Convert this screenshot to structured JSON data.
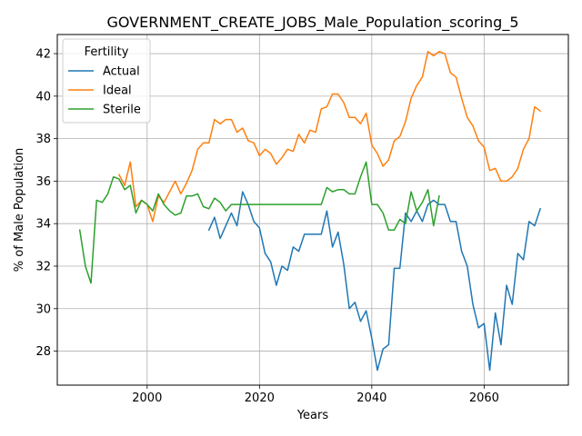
{
  "chart_data": {
    "type": "line",
    "title": "GOVERNMENT_CREATE_JOBS_Male_Population_scoring_5",
    "xlabel": "Years",
    "ylabel": "% of Male Population",
    "xlim": [
      1984,
      2075
    ],
    "ylim": [
      26.4,
      42.9
    ],
    "xticks": [
      2000,
      2020,
      2040,
      2060
    ],
    "yticks": [
      28,
      30,
      32,
      34,
      36,
      38,
      40,
      42
    ],
    "grid": true,
    "legend": {
      "title": "Fertility",
      "position": "top-left"
    },
    "series": [
      {
        "name": "Actual",
        "color": "#1f77b4",
        "x": [
          2011,
          2012,
          2013,
          2014,
          2015,
          2016,
          2017,
          2018,
          2019,
          2020,
          2021,
          2022,
          2023,
          2024,
          2025,
          2026,
          2027,
          2028,
          2029,
          2030,
          2031,
          2032,
          2033,
          2034,
          2035,
          2036,
          2037,
          2038,
          2039,
          2040,
          2041,
          2042,
          2043,
          2044,
          2045,
          2046,
          2047,
          2048,
          2049,
          2050,
          2051,
          2052,
          2053,
          2054,
          2055,
          2056,
          2057,
          2058,
          2059,
          2060,
          2061,
          2062,
          2063,
          2064,
          2065,
          2066,
          2067,
          2068,
          2069,
          2070
        ],
        "y": [
          33.7,
          34.3,
          33.3,
          33.9,
          34.5,
          33.9,
          35.5,
          34.9,
          34.1,
          33.8,
          32.6,
          32.2,
          31.1,
          32.0,
          31.8,
          32.9,
          32.7,
          33.5,
          33.5,
          33.5,
          33.5,
          34.6,
          32.9,
          33.6,
          32.1,
          30.0,
          30.3,
          29.4,
          29.9,
          28.6,
          27.1,
          28.1,
          28.3,
          31.9,
          31.9,
          34.5,
          34.1,
          34.6,
          34.1,
          34.9,
          35.1,
          34.9,
          34.9,
          34.1,
          34.1,
          32.7,
          32.0,
          30.2,
          29.1,
          29.3,
          27.1,
          29.8,
          28.3,
          31.1,
          30.2,
          32.6,
          32.3,
          34.1,
          33.9,
          34.7
        ]
      },
      {
        "name": "Ideal",
        "color": "#ff7f0e",
        "x": [
          1995,
          1996,
          1997,
          1998,
          1999,
          2000,
          2001,
          2002,
          2003,
          2004,
          2005,
          2006,
          2007,
          2008,
          2009,
          2010,
          2011,
          2012,
          2013,
          2014,
          2015,
          2016,
          2017,
          2018,
          2019,
          2020,
          2021,
          2022,
          2023,
          2024,
          2025,
          2026,
          2027,
          2028,
          2029,
          2030,
          2031,
          2032,
          2033,
          2034,
          2035,
          2036,
          2037,
          2038,
          2039,
          2040,
          2041,
          2042,
          2043,
          2044,
          2045,
          2046,
          2047,
          2048,
          2049,
          2050,
          2051,
          2052,
          2053,
          2054,
          2055,
          2056,
          2057,
          2058,
          2059,
          2060,
          2061,
          2062,
          2063,
          2064,
          2065,
          2066,
          2067,
          2068,
          2069,
          2070
        ],
        "y": [
          36.3,
          35.8,
          36.9,
          34.8,
          35.1,
          34.9,
          34.1,
          35.3,
          35.0,
          35.5,
          36.0,
          35.4,
          35.9,
          36.5,
          37.5,
          37.8,
          37.8,
          38.9,
          38.7,
          38.9,
          38.9,
          38.3,
          38.5,
          37.9,
          37.8,
          37.2,
          37.5,
          37.3,
          36.8,
          37.1,
          37.5,
          37.4,
          38.2,
          37.8,
          38.4,
          38.3,
          39.4,
          39.5,
          40.1,
          40.1,
          39.7,
          39.0,
          39.0,
          38.7,
          39.2,
          37.7,
          37.3,
          36.7,
          37.0,
          37.9,
          38.1,
          38.8,
          39.9,
          40.5,
          40.9,
          42.1,
          41.9,
          42.1,
          42.0,
          41.1,
          40.9,
          39.9,
          39.0,
          38.6,
          37.9,
          37.6,
          36.5,
          36.6,
          36.0,
          36.0,
          36.2,
          36.6,
          37.5,
          38.0,
          39.5,
          39.3
        ]
      },
      {
        "name": "Sterile",
        "color": "#2ca02c",
        "x": [
          1988,
          1989,
          1990,
          1991,
          1992,
          1993,
          1994,
          1995,
          1996,
          1997,
          1998,
          1999,
          2000,
          2001,
          2002,
          2003,
          2004,
          2005,
          2006,
          2007,
          2008,
          2009,
          2010,
          2011,
          2012,
          2013,
          2014,
          2015,
          2016,
          2017,
          2018,
          2019,
          2020,
          2021,
          2022,
          2023,
          2024,
          2025,
          2026,
          2027,
          2028,
          2029,
          2030,
          2031,
          2032,
          2033,
          2034,
          2035,
          2036,
          2037,
          2038,
          2039,
          2040,
          2041,
          2042,
          2043,
          2044,
          2045,
          2046,
          2047,
          2048,
          2049,
          2050,
          2051,
          2052
        ],
        "y": [
          33.7,
          32.0,
          31.2,
          35.1,
          35.0,
          35.4,
          36.2,
          36.1,
          35.6,
          35.8,
          34.5,
          35.1,
          34.9,
          34.6,
          35.4,
          34.9,
          34.6,
          34.4,
          34.5,
          35.3,
          35.3,
          35.4,
          34.8,
          34.7,
          35.2,
          35.0,
          34.6,
          34.9,
          34.9,
          34.9,
          34.9,
          34.9,
          34.9,
          34.9,
          34.9,
          34.9,
          34.9,
          34.9,
          34.9,
          34.9,
          34.9,
          34.9,
          34.9,
          34.9,
          35.7,
          35.5,
          35.6,
          35.6,
          35.4,
          35.4,
          36.2,
          36.9,
          34.9,
          34.9,
          34.5,
          33.7,
          33.7,
          34.2,
          34.0,
          35.5,
          34.6,
          35.0,
          35.6,
          33.9,
          35.3
        ]
      }
    ]
  }
}
